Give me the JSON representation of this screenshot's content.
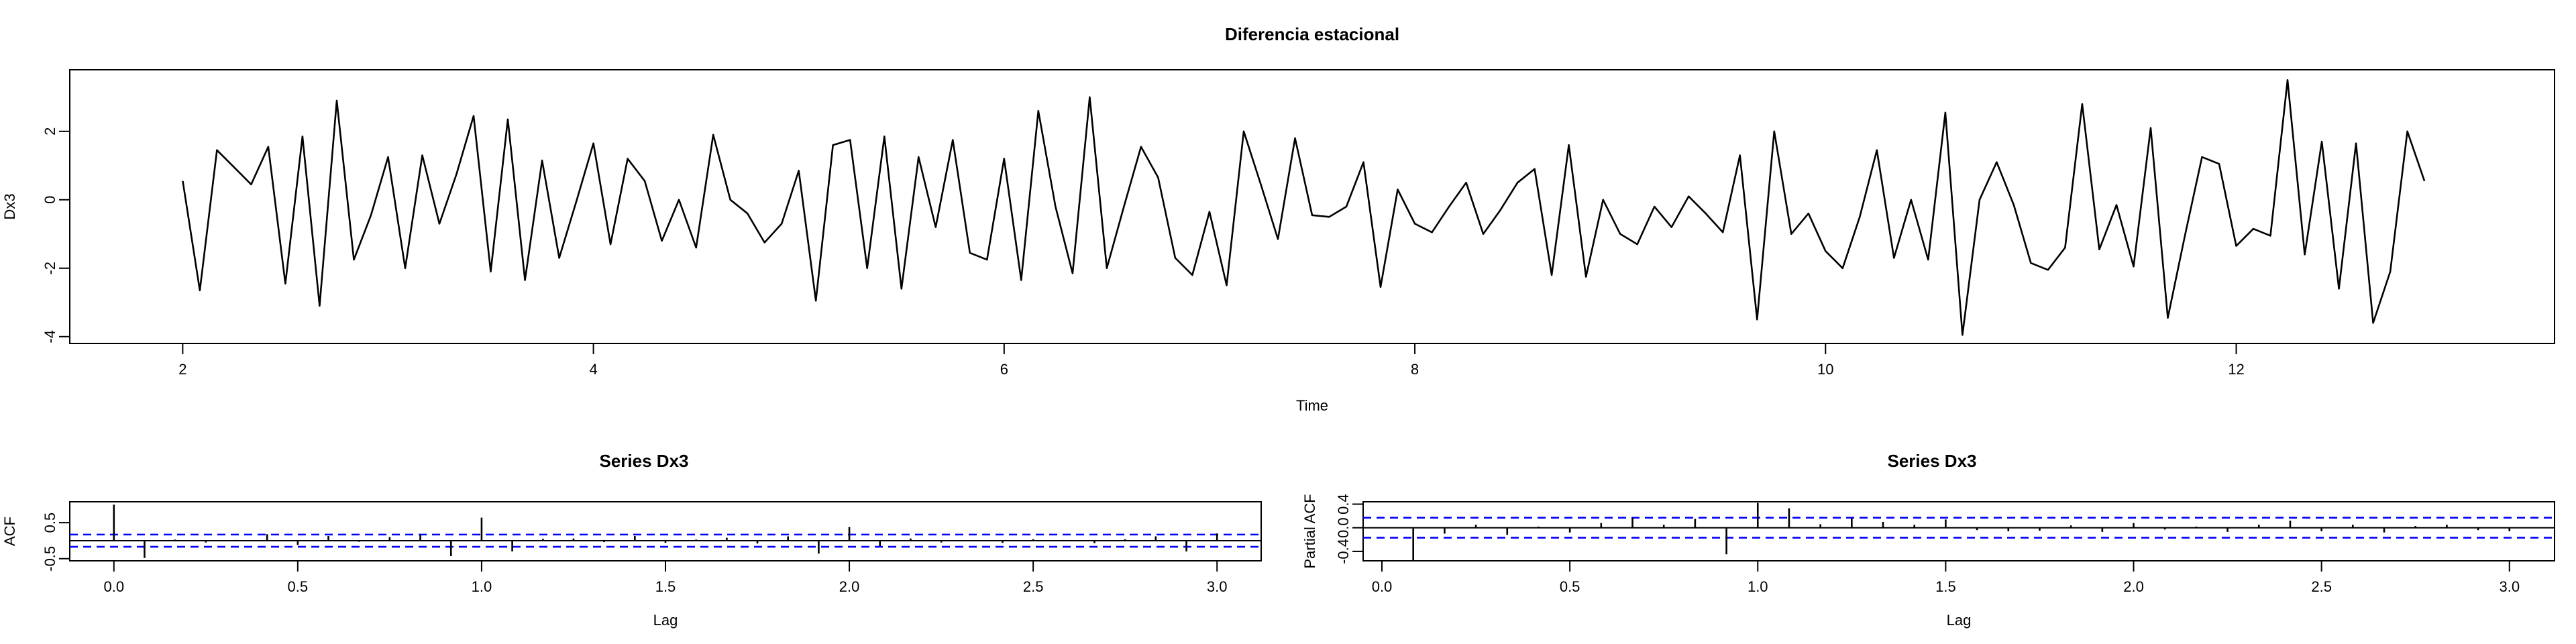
{
  "chart_data": [
    {
      "type": "line",
      "title": "Diferencia estacional",
      "xlabel": "Time",
      "ylabel": "Dx3",
      "xlim": [
        1.45,
        13.55
      ],
      "ylim": [
        -4.2,
        3.8
      ],
      "xticks": [
        2,
        4,
        6,
        8,
        10,
        12
      ],
      "yticks": [
        -4,
        -2,
        0,
        2
      ],
      "start": 2,
      "frequency": 12,
      "y": [
        0.55,
        -2.65,
        1.45,
        0.95,
        0.45,
        1.55,
        -2.45,
        1.85,
        -3.1,
        2.9,
        -1.75,
        -0.45,
        1.25,
        -2.0,
        1.3,
        -0.7,
        0.75,
        2.45,
        -2.1,
        2.35,
        -2.35,
        1.15,
        -1.7,
        -0.05,
        1.65,
        -1.3,
        1.2,
        0.55,
        -1.2,
        0.0,
        -1.4,
        1.9,
        0.0,
        -0.4,
        -1.25,
        -0.7,
        0.85,
        -2.95,
        1.6,
        1.75,
        -2.0,
        1.85,
        -2.6,
        1.25,
        -0.8,
        1.75,
        -1.55,
        -1.75,
        1.2,
        -2.35,
        2.6,
        -0.2,
        -2.15,
        3.0,
        -2.0,
        -0.2,
        1.55,
        0.65,
        -1.7,
        -2.2,
        -0.35,
        -2.5,
        2.0,
        0.45,
        -1.15,
        1.8,
        -0.45,
        -0.5,
        -0.2,
        1.1,
        -2.55,
        0.3,
        -0.7,
        -0.95,
        -0.2,
        0.5,
        -1.0,
        -0.3,
        0.5,
        0.9,
        -2.2,
        1.6,
        -2.25,
        0.0,
        -1.0,
        -1.3,
        -0.2,
        -0.8,
        0.1,
        -0.4,
        -0.95,
        1.3,
        -3.5,
        2.0,
        -1.0,
        -0.4,
        -1.5,
        -2.0,
        -0.5,
        1.45,
        -1.7,
        0.0,
        -1.75,
        2.55,
        -3.95,
        0.0,
        1.1,
        -0.15,
        -1.85,
        -2.05,
        -1.4,
        2.8,
        -1.45,
        -0.15,
        -1.95,
        2.1,
        -3.45,
        -1.05,
        1.25,
        1.05,
        -1.35,
        -0.85,
        -1.05,
        3.5,
        -1.6,
        1.7,
        -2.6,
        1.65,
        -3.6,
        -2.1,
        2.0,
        0.55
      ]
    },
    {
      "type": "bar",
      "title": "Series  Dx3",
      "xlabel": "Lag",
      "ylabel": "ACF",
      "xlim": [
        -0.12,
        3.12
      ],
      "ylim": [
        -0.56,
        1.08
      ],
      "xticks": [
        "0.0",
        "0.5",
        "1.0",
        "1.5",
        "2.0",
        "2.5",
        "3.0"
      ],
      "yticks": [
        "-0.5",
        "0.5"
      ],
      "ci": 0.169,
      "lags": [
        0.0,
        0.0833,
        0.1667,
        0.25,
        0.3333,
        0.4167,
        0.5,
        0.5833,
        0.6667,
        0.75,
        0.8333,
        0.9167,
        1.0,
        1.0833,
        1.1667,
        1.25,
        1.3333,
        1.4167,
        1.5,
        1.5833,
        1.6667,
        1.75,
        1.8333,
        1.9167,
        2.0,
        2.0833,
        2.1667,
        2.25,
        2.3333,
        2.4167,
        2.5,
        2.5833,
        2.6667,
        2.75,
        2.8333,
        2.9167,
        3.0
      ],
      "values": [
        1.0,
        -0.48,
        0.03,
        -0.05,
        0.02,
        0.18,
        -0.12,
        0.13,
        -0.03,
        0.1,
        0.17,
        -0.43,
        0.64,
        -0.3,
        0.05,
        0.06,
        -0.04,
        0.13,
        -0.06,
        0.03,
        0.08,
        -0.08,
        0.12,
        -0.36,
        0.38,
        -0.15,
        0.06,
        -0.05,
        0.0,
        -0.06,
        0.04,
        0.02,
        -0.07,
        0.04,
        0.12,
        -0.3,
        0.2
      ]
    },
    {
      "type": "bar",
      "title": "Series  Dx3",
      "xlabel": "Lag",
      "ylabel": "Partial ACF",
      "xlim": [
        -0.05,
        3.12
      ],
      "ylim": [
        -0.56,
        0.44
      ],
      "xticks": [
        "0.0",
        "0.5",
        "1.0",
        "1.5",
        "2.0",
        "2.5",
        "3.0"
      ],
      "yticks": [
        "-0.4",
        "0.0",
        "0.4"
      ],
      "ci": 0.169,
      "lags": [
        0.0833,
        0.1667,
        0.25,
        0.3333,
        0.4167,
        0.5,
        0.5833,
        0.6667,
        0.75,
        0.8333,
        0.9167,
        1.0,
        1.0833,
        1.1667,
        1.25,
        1.3333,
        1.4167,
        1.5,
        1.5833,
        1.6667,
        1.75,
        1.8333,
        1.9167,
        2.0,
        2.0833,
        2.1667,
        2.25,
        2.3333,
        2.4167,
        2.5,
        2.5833,
        2.6667,
        2.75,
        2.8333,
        2.9167,
        3.0
      ],
      "values": [
        -0.56,
        -0.1,
        0.05,
        -0.12,
        0.02,
        -0.08,
        0.08,
        0.17,
        0.05,
        0.15,
        -0.45,
        0.42,
        0.33,
        0.06,
        0.17,
        0.1,
        0.05,
        0.14,
        -0.04,
        -0.06,
        -0.05,
        0.04,
        -0.07,
        0.08,
        -0.03,
        0.02,
        -0.07,
        0.05,
        0.12,
        -0.06,
        0.05,
        -0.08,
        0.03,
        0.05,
        -0.04,
        -0.06
      ]
    }
  ],
  "colors": {
    "line": "#000000",
    "ci": "#0000ff"
  }
}
